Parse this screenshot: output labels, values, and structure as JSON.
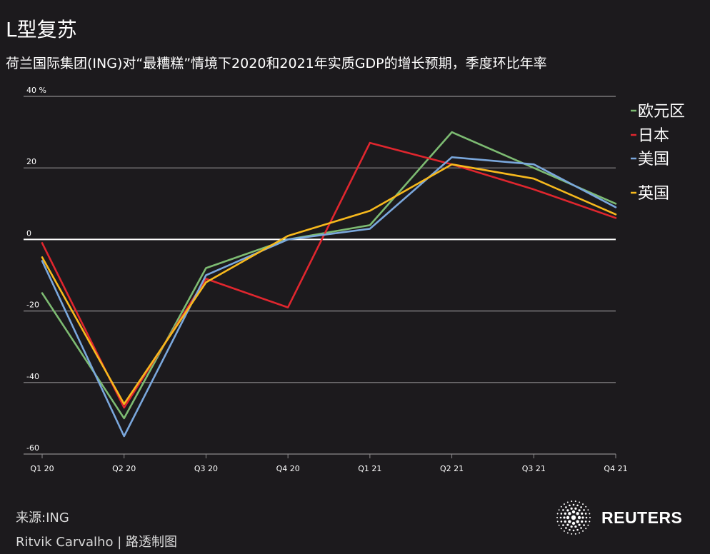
{
  "header": {
    "title": "L型复苏",
    "subtitle": "荷兰国际集团(ING)对“最糟糕”情境下2020和2021年实质GDP的增长预期，季度环比年率"
  },
  "footer": {
    "source": "来源:ING",
    "credit": "Ritvik Carvalho | 路透制图",
    "logo_text": "REUTERS"
  },
  "colors": {
    "background": "#1c1a1d",
    "grid": "#8c8a8d",
    "zero_line": "#ffffff",
    "eurozone": "#7dbb72",
    "japan": "#e0262e",
    "usa": "#7aa7dc",
    "uk": "#f7b91d"
  },
  "chart_data": {
    "type": "line",
    "title": "L型复苏",
    "subtitle": "荷兰国际集团(ING)对“最糟糕”情境下2020和2021年实质GDP的增长预期，季度环比年率",
    "categories": [
      "Q1 20",
      "Q2 20",
      "Q3 20",
      "Q4 20",
      "Q1 21",
      "Q2 21",
      "Q3 21",
      "Q4 21"
    ],
    "y_ticks": [
      40,
      20,
      0,
      -20,
      -40,
      -60
    ],
    "y_tick_labels": [
      "40 %",
      "20",
      "0",
      "-20",
      "-40",
      "-60"
    ],
    "ylim": [
      -60,
      40
    ],
    "grid": true,
    "legend_position": "top-right",
    "series": [
      {
        "name": "欧元区",
        "color": "#7dbb72",
        "values": [
          -15,
          -50,
          -8,
          0,
          4,
          30,
          20,
          10
        ]
      },
      {
        "name": "日本",
        "color": "#e0262e",
        "values": [
          -1,
          -47,
          -11,
          -19,
          27,
          21,
          14,
          6
        ]
      },
      {
        "name": "美国",
        "color": "#7aa7dc",
        "values": [
          -6,
          -55,
          -10,
          0,
          3,
          23,
          21,
          9
        ]
      },
      {
        "name": "英国",
        "color": "#f7b91d",
        "values": [
          -5,
          -46,
          -12,
          1,
          8,
          21,
          17,
          7
        ]
      }
    ]
  }
}
